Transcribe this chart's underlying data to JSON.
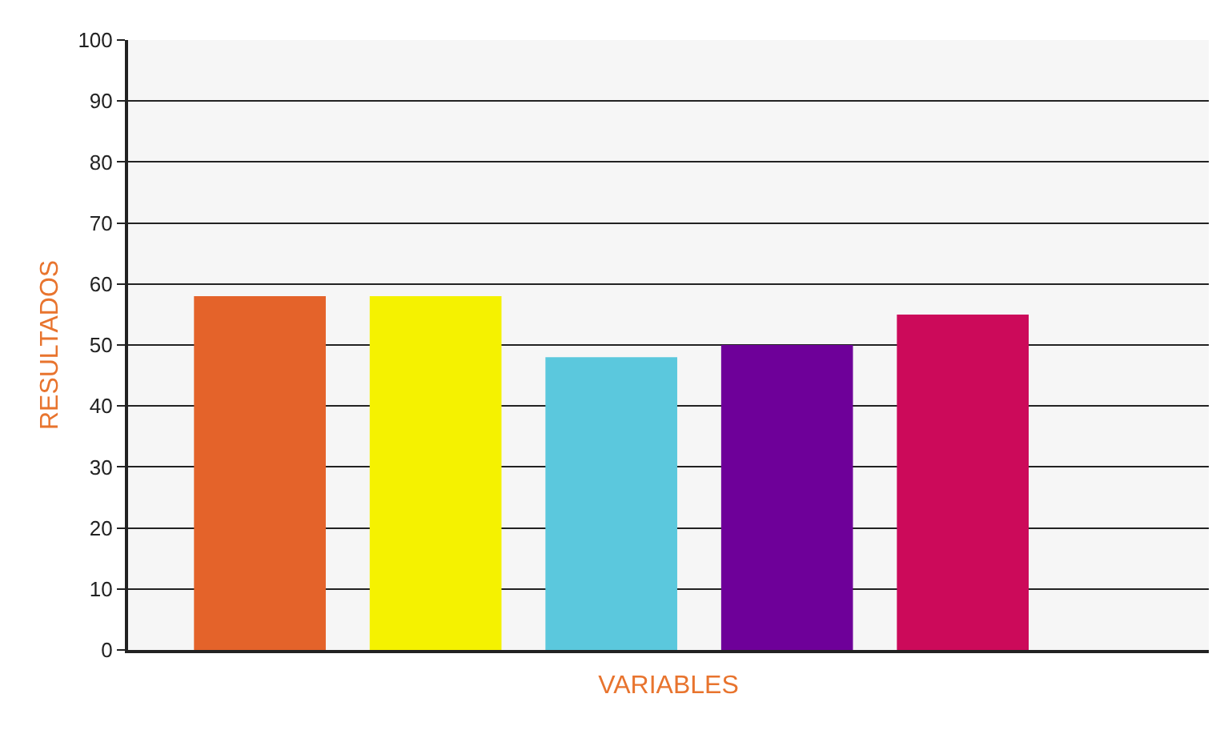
{
  "chart_data": {
    "type": "bar",
    "xlabel": "VARIABLES",
    "ylabel": "RESULTADOS",
    "categories": [
      null,
      null,
      null,
      null,
      null
    ],
    "values": [
      58,
      58,
      48,
      50,
      55
    ],
    "colors": [
      "#e4632a",
      "#f5f200",
      "#5bc8dd",
      "#6e0099",
      "#cc0a5a"
    ],
    "ylim": [
      0,
      100
    ],
    "yticks": [
      0,
      10,
      20,
      30,
      40,
      50,
      60,
      70,
      80,
      90,
      100
    ],
    "grid": "y"
  }
}
